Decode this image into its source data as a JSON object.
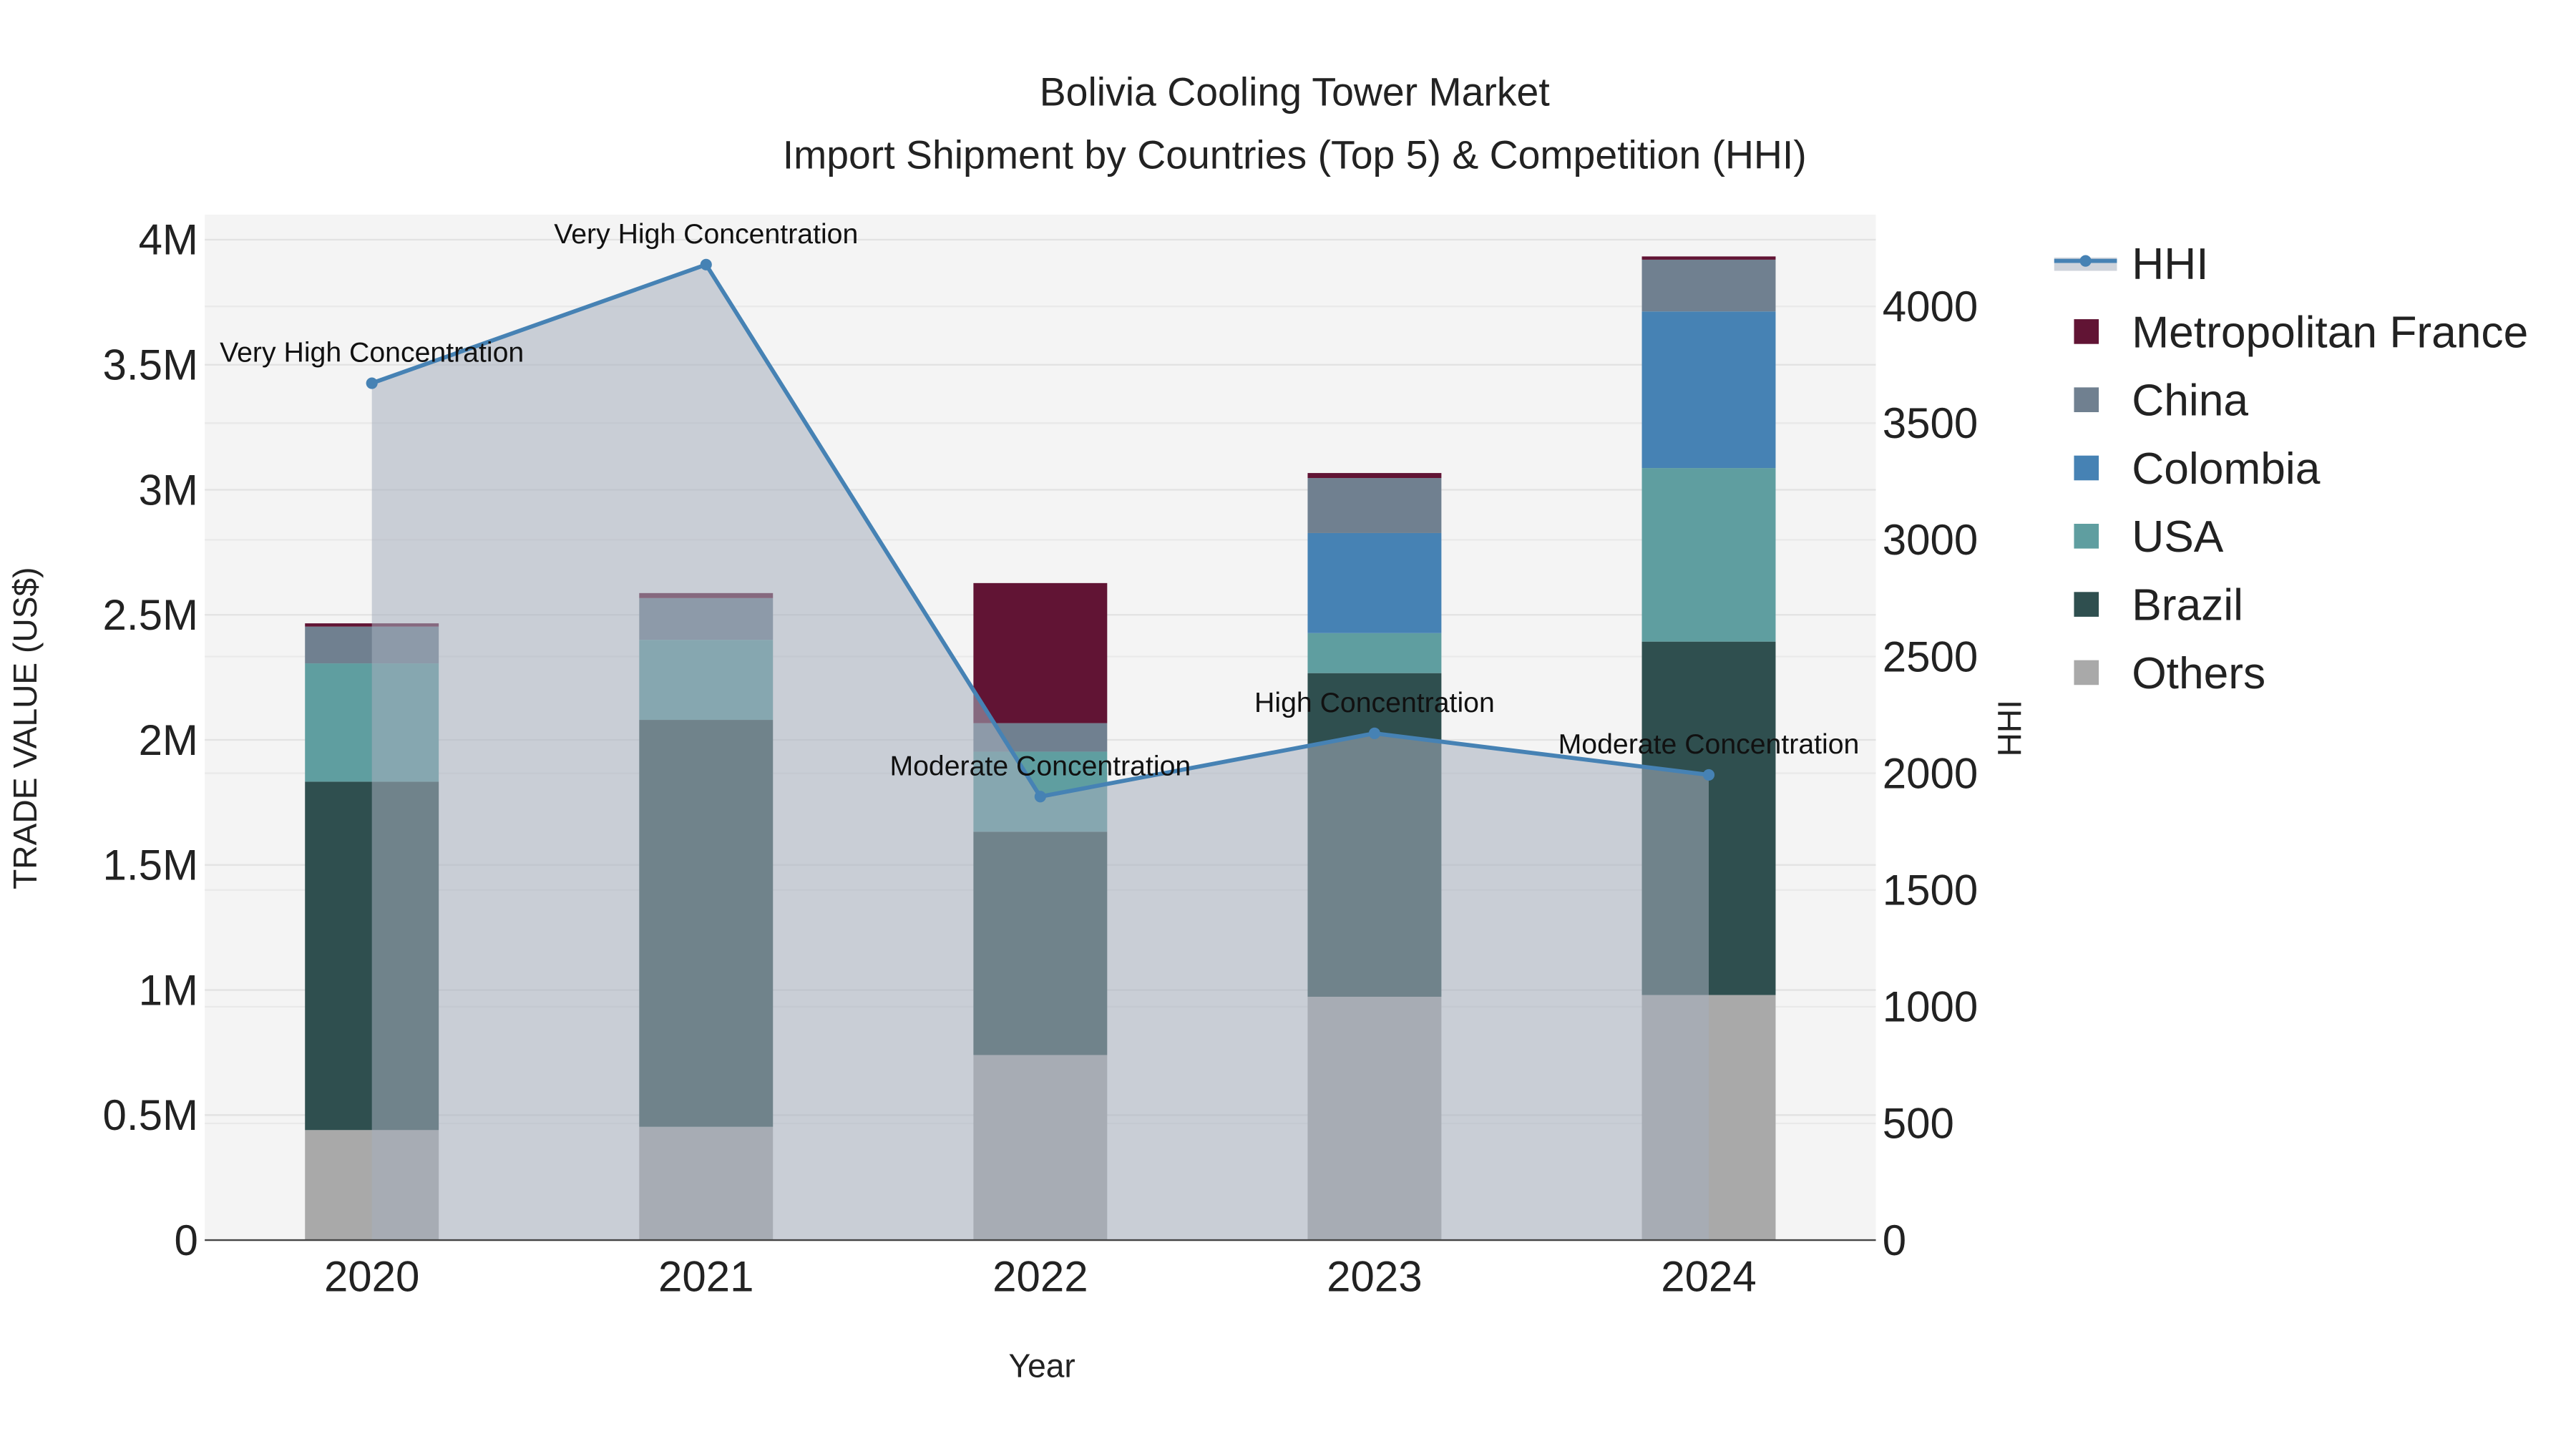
{
  "chart_data": {
    "type": "bar",
    "title": "Bolivia Cooling Tower Market",
    "subtitle": "Import Shipment by Countries (Top 5) & Competition (HHI)",
    "xlabel": "Year",
    "ylabel": "TRADE VALUE (US$)",
    "y2label": "HHI",
    "categories": [
      "2020",
      "2021",
      "2022",
      "2023",
      "2024"
    ],
    "ylim": [
      0,
      4100000
    ],
    "y2lim": [
      0,
      4393
    ],
    "yticks": [
      {
        "v": 0,
        "label": "0"
      },
      {
        "v": 500000,
        "label": "0.5M"
      },
      {
        "v": 1000000,
        "label": "1M"
      },
      {
        "v": 1500000,
        "label": "1.5M"
      },
      {
        "v": 2000000,
        "label": "2M"
      },
      {
        "v": 2500000,
        "label": "2.5M"
      },
      {
        "v": 3000000,
        "label": "3M"
      },
      {
        "v": 3500000,
        "label": "3.5M"
      },
      {
        "v": 4000000,
        "label": "4M"
      }
    ],
    "y2ticks": [
      {
        "v": 0,
        "label": "0"
      },
      {
        "v": 500,
        "label": "500"
      },
      {
        "v": 1000,
        "label": "1000"
      },
      {
        "v": 1500,
        "label": "1500"
      },
      {
        "v": 2000,
        "label": "2000"
      },
      {
        "v": 2500,
        "label": "2500"
      },
      {
        "v": 3000,
        "label": "3000"
      },
      {
        "v": 3500,
        "label": "3500"
      },
      {
        "v": 4000,
        "label": "4000"
      }
    ],
    "series": [
      {
        "name": "Others",
        "color": "#a9a9a9",
        "values": [
          440000,
          453000,
          740000,
          973000,
          980000
        ]
      },
      {
        "name": "Brazil",
        "color": "#2f4f4f",
        "values": [
          1393000,
          1627000,
          893000,
          1294000,
          1413000
        ]
      },
      {
        "name": "USA",
        "color": "#5f9ea0",
        "values": [
          473000,
          320000,
          320000,
          160000,
          694000
        ]
      },
      {
        "name": "Colombia",
        "color": "#4682b4",
        "values": [
          0,
          0,
          0,
          400000,
          626000
        ]
      },
      {
        "name": "China",
        "color": "#708090",
        "values": [
          147000,
          167000,
          114000,
          220000,
          207000
        ]
      },
      {
        "name": "Metropolitan France",
        "color": "#611434",
        "values": [
          13000,
          20000,
          560000,
          20000,
          13000
        ]
      }
    ],
    "hhi": {
      "name": "HHI",
      "color": "#4682b4",
      "values": [
        3671,
        4179,
        1900,
        2171,
        1993
      ],
      "annotations": [
        "Very High Concentration",
        "Very High Concentration",
        "Moderate Concentration",
        "High Concentration",
        "Moderate Concentration"
      ]
    },
    "legend": [
      "HHI",
      "Metropolitan France",
      "China",
      "Colombia",
      "USA",
      "Brazil",
      "Others"
    ],
    "legend_position": "right",
    "grid": true
  }
}
